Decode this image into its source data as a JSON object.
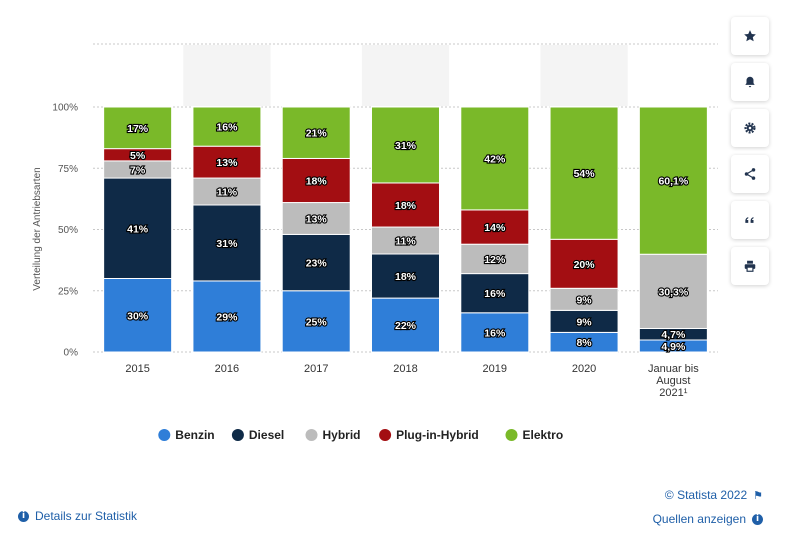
{
  "chart_data": {
    "type": "bar",
    "stacked": true,
    "title": "",
    "xlabel": "",
    "ylabel": "Verteilung der Antriebsarten",
    "ylim": [
      0,
      100
    ],
    "y_ticks": [
      "0%",
      "25%",
      "50%",
      "75%",
      "100%"
    ],
    "y_tick_values": [
      0,
      25,
      50,
      75,
      100
    ],
    "categories": [
      "2015",
      "2016",
      "2017",
      "2018",
      "2019",
      "2020",
      "Januar bis August 2021¹"
    ],
    "category_lines": [
      [
        "2015"
      ],
      [
        "2016"
      ],
      [
        "2017"
      ],
      [
        "2018"
      ],
      [
        "2019"
      ],
      [
        "2020"
      ],
      [
        "Januar bis",
        "August",
        "2021¹"
      ]
    ],
    "legend_position": "bottom",
    "series": [
      {
        "name": "Benzin",
        "color": "#2f7ed8",
        "values": [
          30,
          29,
          25,
          22,
          16,
          8,
          4.9
        ],
        "labels": [
          "30%",
          "29%",
          "25%",
          "22%",
          "16%",
          "8%",
          "4,9%"
        ]
      },
      {
        "name": "Diesel",
        "color": "#0f2a47",
        "values": [
          41,
          31,
          23,
          18,
          16,
          9,
          4.7
        ],
        "labels": [
          "41%",
          "31%",
          "23%",
          "18%",
          "16%",
          "9%",
          "4,7%"
        ]
      },
      {
        "name": "Hybrid",
        "color": "#bcbcbc",
        "values": [
          7,
          11,
          13,
          11,
          12,
          9,
          30.3
        ],
        "labels": [
          "7%",
          "11%",
          "13%",
          "11%",
          "12%",
          "9%",
          "30,3%"
        ]
      },
      {
        "name": "Plug-in-Hybrid",
        "color": "#a30e12",
        "values": [
          5,
          13,
          18,
          18,
          14,
          20,
          0
        ],
        "labels": [
          "5%",
          "13%",
          "18%",
          "18%",
          "14%",
          "20%",
          ""
        ]
      },
      {
        "name": "Elektro",
        "color": "#7ab929",
        "values": [
          17,
          16,
          21,
          31,
          42,
          54,
          60.1
        ],
        "labels": [
          "17%",
          "16%",
          "21%",
          "31%",
          "42%",
          "54%",
          "60,1%"
        ]
      }
    ]
  },
  "sidebar": {
    "icons": [
      "star-icon",
      "bell-icon",
      "gear-icon",
      "share-icon",
      "quote-icon",
      "print-icon"
    ]
  },
  "footer": {
    "details_label": "Details zur Statistik",
    "copyright": "© Statista 2022",
    "sources_label": "Quellen anzeigen",
    "info_glyph": "i",
    "flag_glyph": "⚑"
  }
}
